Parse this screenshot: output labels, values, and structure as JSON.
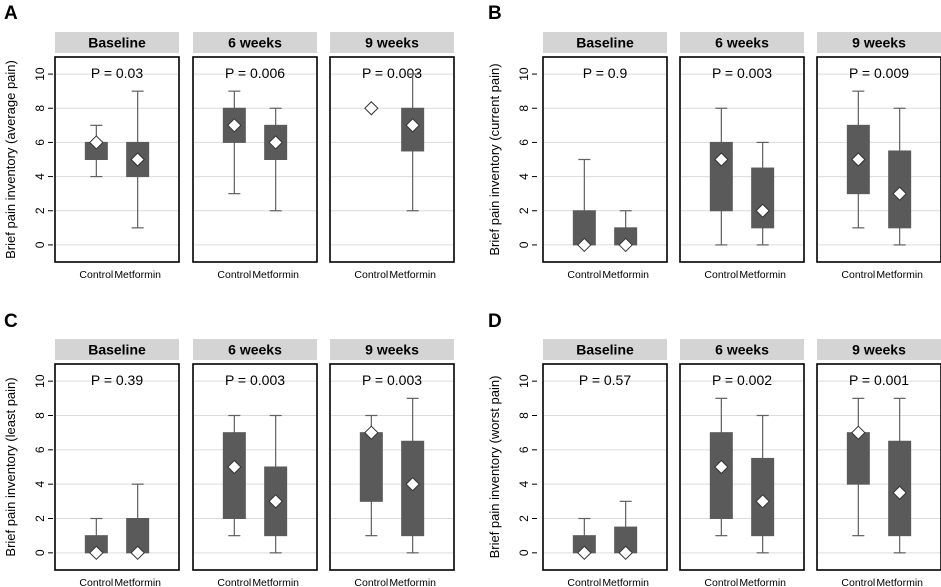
{
  "chart_data": [
    {
      "panel": "A",
      "type": "boxplot",
      "ylabel": "Brief pain inventory (average pain)",
      "ylim": [
        -1,
        11
      ],
      "yticks": [
        0,
        2,
        4,
        6,
        8,
        10
      ],
      "facets": [
        {
          "title": "Baseline",
          "pvalue": "P = 0.03",
          "groups": [
            {
              "name": "Control",
              "min": 4,
              "q1": 5,
              "median": 6,
              "q3": 6,
              "max": 7
            },
            {
              "name": "Metformin",
              "min": 1,
              "q1": 4,
              "median": 5,
              "q3": 6,
              "max": 9
            }
          ]
        },
        {
          "title": "6 weeks",
          "pvalue": "P = 0.006",
          "groups": [
            {
              "name": "Control",
              "min": 3,
              "q1": 6,
              "median": 7,
              "q3": 8,
              "max": 9
            },
            {
              "name": "Metformin",
              "min": 2,
              "q1": 5,
              "median": 6,
              "q3": 7,
              "max": 8
            }
          ]
        },
        {
          "title": "9 weeks",
          "pvalue": "P = 0.003",
          "groups": [
            {
              "name": "Control",
              "min": 8,
              "q1": 8,
              "median": 8,
              "q3": 8,
              "max": 8
            },
            {
              "name": "Metformin",
              "min": 2,
              "q1": 5.5,
              "median": 7,
              "q3": 8,
              "max": 10
            }
          ]
        }
      ]
    },
    {
      "panel": "B",
      "type": "boxplot",
      "ylabel": "Brief pain inventory (current pain)",
      "ylim": [
        -1,
        11
      ],
      "yticks": [
        0,
        2,
        4,
        6,
        8,
        10
      ],
      "facets": [
        {
          "title": "Baseline",
          "pvalue": "P = 0.9",
          "groups": [
            {
              "name": "Control",
              "min": 0,
              "q1": 0,
              "median": 0,
              "q3": 2,
              "max": 5
            },
            {
              "name": "Metformin",
              "min": 0,
              "q1": 0,
              "median": 0,
              "q3": 1,
              "max": 2
            }
          ]
        },
        {
          "title": "6 weeks",
          "pvalue": "P = 0.003",
          "groups": [
            {
              "name": "Control",
              "min": 0,
              "q1": 2,
              "median": 5,
              "q3": 6,
              "max": 8
            },
            {
              "name": "Metformin",
              "min": 0,
              "q1": 1,
              "median": 2,
              "q3": 4.5,
              "max": 6
            }
          ]
        },
        {
          "title": "9 weeks",
          "pvalue": "P = 0.009",
          "groups": [
            {
              "name": "Control",
              "min": 1,
              "q1": 3,
              "median": 5,
              "q3": 7,
              "max": 9
            },
            {
              "name": "Metformin",
              "min": 0,
              "q1": 1,
              "median": 3,
              "q3": 5.5,
              "max": 8
            }
          ]
        }
      ]
    },
    {
      "panel": "C",
      "type": "boxplot",
      "ylabel": "Brief pain inventory (least pain)",
      "ylim": [
        -1,
        11
      ],
      "yticks": [
        0,
        2,
        4,
        6,
        8,
        10
      ],
      "facets": [
        {
          "title": "Baseline",
          "pvalue": "P = 0.39",
          "groups": [
            {
              "name": "Control",
              "min": 0,
              "q1": 0,
              "median": 0,
              "q3": 1,
              "max": 2
            },
            {
              "name": "Metformin",
              "min": 0,
              "q1": 0,
              "median": 0,
              "q3": 2,
              "max": 4
            }
          ]
        },
        {
          "title": "6 weeks",
          "pvalue": "P = 0.003",
          "groups": [
            {
              "name": "Control",
              "min": 1,
              "q1": 2,
              "median": 5,
              "q3": 7,
              "max": 8
            },
            {
              "name": "Metformin",
              "min": 0,
              "q1": 1,
              "median": 3,
              "q3": 5,
              "max": 8
            }
          ]
        },
        {
          "title": "9 weeks",
          "pvalue": "P = 0.003",
          "groups": [
            {
              "name": "Control",
              "min": 1,
              "q1": 3,
              "median": 7,
              "q3": 7,
              "max": 8
            },
            {
              "name": "Metformin",
              "min": 0,
              "q1": 1,
              "median": 4,
              "q3": 6.5,
              "max": 9
            }
          ]
        }
      ]
    },
    {
      "panel": "D",
      "type": "boxplot",
      "ylabel": "Brief pain inventory (worst pain)",
      "ylim": [
        -1,
        11
      ],
      "yticks": [
        0,
        2,
        4,
        6,
        8,
        10
      ],
      "facets": [
        {
          "title": "Baseline",
          "pvalue": "P = 0.57",
          "groups": [
            {
              "name": "Control",
              "min": 0,
              "q1": 0,
              "median": 0,
              "q3": 1,
              "max": 2
            },
            {
              "name": "Metformin",
              "min": 0,
              "q1": 0,
              "median": 0,
              "q3": 1.5,
              "max": 3
            }
          ]
        },
        {
          "title": "6 weeks",
          "pvalue": "P = 0.002",
          "groups": [
            {
              "name": "Control",
              "min": 1,
              "q1": 2,
              "median": 5,
              "q3": 7,
              "max": 9
            },
            {
              "name": "Metformin",
              "min": 0,
              "q1": 1,
              "median": 3,
              "q3": 5.5,
              "max": 8
            }
          ]
        },
        {
          "title": "9 weeks",
          "pvalue": "P = 0.001",
          "groups": [
            {
              "name": "Control",
              "min": 1,
              "q1": 4,
              "median": 7,
              "q3": 7,
              "max": 9
            },
            {
              "name": "Metformin",
              "min": 0,
              "q1": 1,
              "median": 3.5,
              "q3": 6.5,
              "max": 9
            }
          ]
        }
      ]
    }
  ]
}
